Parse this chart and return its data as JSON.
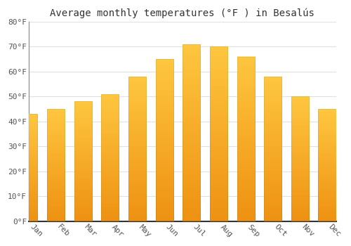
{
  "title": "Average monthly temperatures (°F ) in Besalús",
  "months": [
    "Jan",
    "Feb",
    "Mar",
    "Apr",
    "May",
    "Jun",
    "Jul",
    "Aug",
    "Sep",
    "Oct",
    "Nov",
    "Dec"
  ],
  "values": [
    43,
    45,
    48,
    51,
    58,
    65,
    71,
    70,
    66,
    58,
    50,
    45
  ],
  "bar_color_main": "#FFA500",
  "bar_color_light": "#FFD050",
  "bar_edge_color": "#B8860B",
  "background_color": "#FFFFFF",
  "grid_color": "#E0E0E0",
  "ylim": [
    0,
    80
  ],
  "yticks": [
    0,
    10,
    20,
    30,
    40,
    50,
    60,
    70,
    80
  ],
  "title_fontsize": 10,
  "tick_fontsize": 8,
  "xlabel_rotation": -45
}
